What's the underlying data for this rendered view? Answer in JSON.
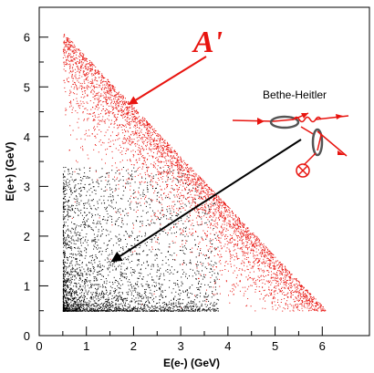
{
  "chart_data": {
    "type": "scatter",
    "xlabel": "E(e-) (GeV)",
    "ylabel": "E(e+) (GeV)",
    "xlim": [
      0,
      7
    ],
    "ylim": [
      0,
      6.6
    ],
    "x_ticks": [
      "0",
      "1",
      "2",
      "3",
      "4",
      "5",
      "6"
    ],
    "y_ticks": [
      "0",
      "1",
      "2",
      "3",
      "4",
      "5",
      "6"
    ],
    "grid": false,
    "series": [
      {
        "name": "A'",
        "color": "#e8140f",
        "region": "E(e+) + E(e-) ≈ 6.6 GeV, E(e+) ≥ 0.5, E(e-) ≥ 0.5",
        "density": "concentrated near the upper diagonal edge"
      },
      {
        "name": "Bethe-Heitler",
        "color": "#000000",
        "region": "E(e+) ≥ 0.5, E(e-) ≥ 0.5, below diagonal",
        "density": "concentrated at low E(e+), low E(e-)"
      }
    ],
    "annotations": [
      {
        "text": "A'",
        "color": "#e8140f",
        "arrow_to": [
          1.9,
          4.65
        ]
      },
      {
        "text": "Bethe-Heitler",
        "color": "#000000",
        "arrow_to": [
          1.55,
          1.5
        ]
      }
    ]
  }
}
